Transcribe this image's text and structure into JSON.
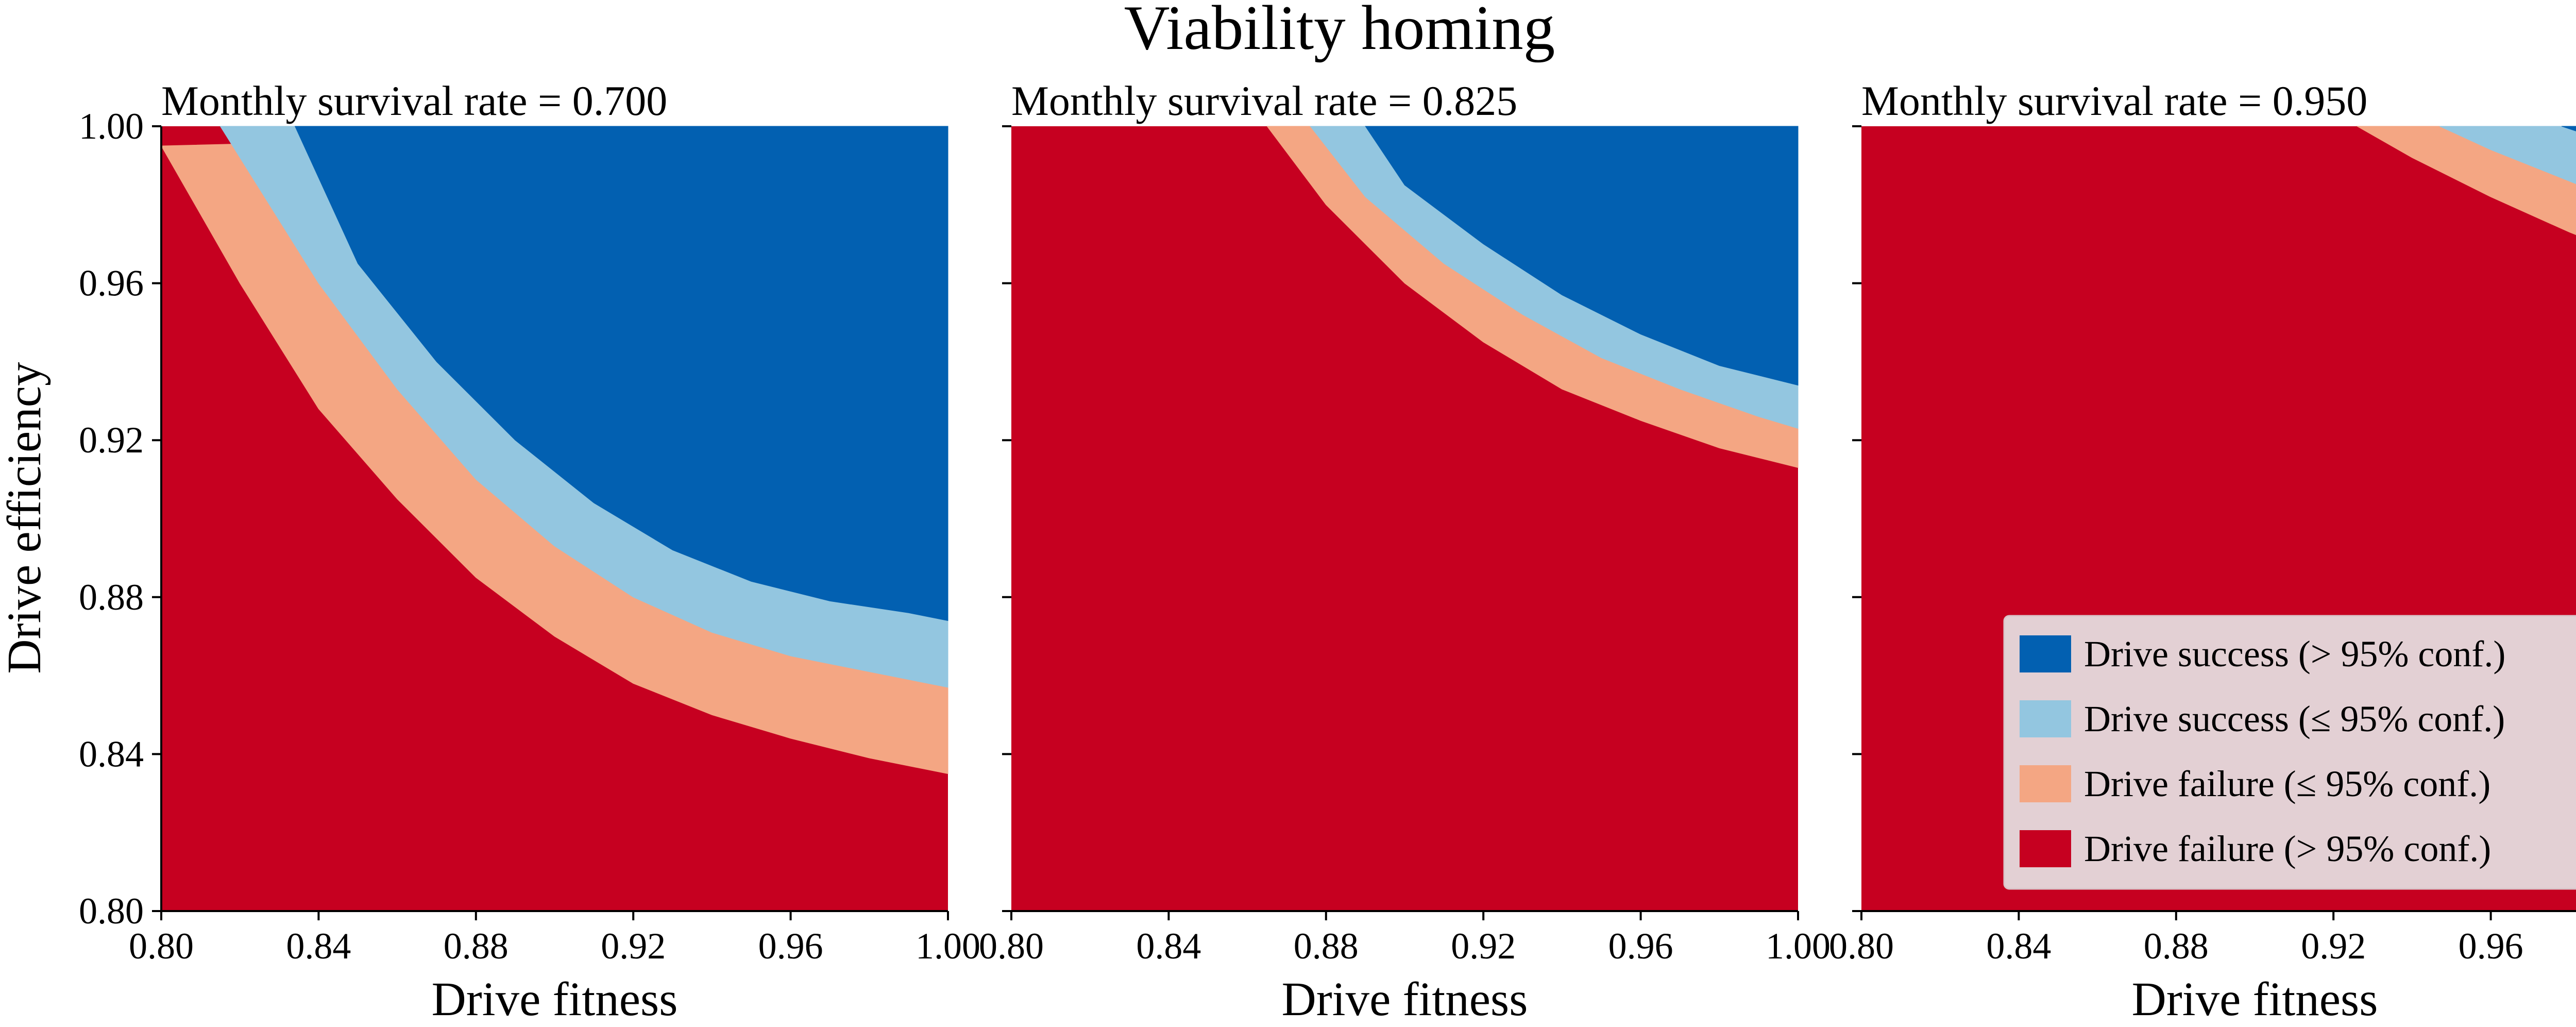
{
  "chart_data": {
    "type": "heatmap",
    "title": "Viability homing",
    "xlabel": "Drive fitness",
    "ylabel": "Drive efficiency",
    "xlim": [
      0.8,
      1.0
    ],
    "ylim": [
      0.8,
      1.0
    ],
    "xticks": [
      "0.80",
      "0.84",
      "0.88",
      "0.92",
      "0.96",
      "1.00"
    ],
    "yticks": [
      "0.80",
      "0.84",
      "0.88",
      "0.92",
      "0.96",
      "1.00"
    ],
    "grid": false,
    "legend_position": "lower-right",
    "categories": [
      {
        "label": "Drive success (> 95% conf.)",
        "color": "#0260b1"
      },
      {
        "label": "Drive success (≤ 95% conf.)",
        "color": "#93c6e0"
      },
      {
        "label": "Drive failure (≤ 95% conf.)",
        "color": "#f4a683"
      },
      {
        "label": "Drive failure (> 95% conf.)",
        "color": "#c60020"
      }
    ],
    "panels": [
      {
        "title": "Monthly survival rate = 0.700",
        "boundaries": [
          {
            "between": "red/salmon",
            "points": [
              [
                0.8,
                0.995
              ],
              [
                0.82,
                0.96
              ],
              [
                0.84,
                0.928
              ],
              [
                0.86,
                0.905
              ],
              [
                0.88,
                0.885
              ],
              [
                0.9,
                0.87
              ],
              [
                0.92,
                0.858
              ],
              [
                0.94,
                0.85
              ],
              [
                0.96,
                0.844
              ],
              [
                0.98,
                0.839
              ],
              [
                1.0,
                0.835
              ]
            ]
          },
          {
            "between": "salmon/light-blue",
            "points": [
              [
                0.815,
                1.0
              ],
              [
                0.84,
                0.96
              ],
              [
                0.86,
                0.933
              ],
              [
                0.88,
                0.91
              ],
              [
                0.9,
                0.893
              ],
              [
                0.92,
                0.88
              ],
              [
                0.94,
                0.871
              ],
              [
                0.96,
                0.865
              ],
              [
                0.98,
                0.861
              ],
              [
                1.0,
                0.857
              ]
            ]
          },
          {
            "between": "light-blue/dark-blue",
            "points": [
              [
                0.834,
                1.0
              ],
              [
                0.85,
                0.965
              ],
              [
                0.87,
                0.94
              ],
              [
                0.89,
                0.92
              ],
              [
                0.91,
                0.904
              ],
              [
                0.93,
                0.892
              ],
              [
                0.95,
                0.884
              ],
              [
                0.97,
                0.879
              ],
              [
                0.99,
                0.876
              ],
              [
                1.0,
                0.874
              ]
            ]
          }
        ]
      },
      {
        "title": "Monthly survival rate = 0.825",
        "boundaries": [
          {
            "between": "red/salmon",
            "points": [
              [
                0.865,
                1.0
              ],
              [
                0.88,
                0.98
              ],
              [
                0.9,
                0.96
              ],
              [
                0.92,
                0.945
              ],
              [
                0.94,
                0.933
              ],
              [
                0.96,
                0.925
              ],
              [
                0.98,
                0.918
              ],
              [
                1.0,
                0.913
              ]
            ]
          },
          {
            "between": "salmon/light-blue",
            "points": [
              [
                0.876,
                1.0
              ],
              [
                0.89,
                0.982
              ],
              [
                0.91,
                0.965
              ],
              [
                0.93,
                0.952
              ],
              [
                0.95,
                0.941
              ],
              [
                0.97,
                0.933
              ],
              [
                0.99,
                0.926
              ],
              [
                1.0,
                0.923
              ]
            ]
          },
          {
            "between": "light-blue/dark-blue",
            "points": [
              [
                0.89,
                1.0
              ],
              [
                0.9,
                0.985
              ],
              [
                0.92,
                0.97
              ],
              [
                0.94,
                0.957
              ],
              [
                0.96,
                0.947
              ],
              [
                0.98,
                0.939
              ],
              [
                1.0,
                0.934
              ]
            ]
          }
        ]
      },
      {
        "title": "Monthly survival rate = 0.950",
        "boundaries": [
          {
            "between": "red/salmon",
            "points": [
              [
                0.926,
                1.0
              ],
              [
                0.94,
                0.992
              ],
              [
                0.96,
                0.982
              ],
              [
                0.98,
                0.973
              ],
              [
                1.0,
                0.965
              ]
            ]
          },
          {
            "between": "salmon/light-blue",
            "points": [
              [
                0.947,
                1.0
              ],
              [
                0.96,
                0.994
              ],
              [
                0.98,
                0.986
              ],
              [
                1.0,
                0.978
              ]
            ]
          },
          {
            "between": "light-blue/dark-blue",
            "points": [
              [
                0.978,
                1.0
              ],
              [
                0.99,
                0.996
              ],
              [
                1.0,
                0.992
              ]
            ]
          }
        ]
      }
    ]
  }
}
